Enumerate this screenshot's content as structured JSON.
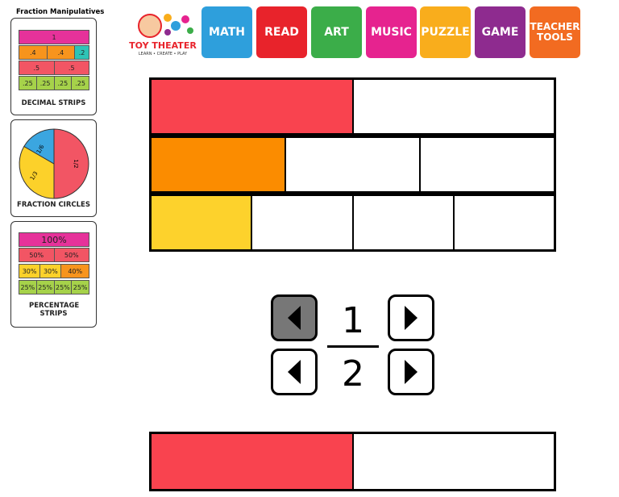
{
  "sidebar": {
    "title": "Fraction Manipulatives",
    "cards": [
      {
        "rows": [
          [
            "1"
          ],
          [
            ".4",
            ".4",
            ".2"
          ],
          [
            ".5",
            ".5"
          ],
          [
            ".25",
            ".25",
            ".25",
            ".25"
          ]
        ],
        "caption": "DECIMAL STRIPS"
      },
      {
        "labels": [
          "1/2",
          "1/3",
          "1/6"
        ],
        "caption": "FRACTION CIRCLES"
      },
      {
        "rows": [
          [
            "100%"
          ],
          [
            "50%",
            "50%"
          ],
          [
            "30%",
            "30%",
            "40%"
          ],
          [
            "25%",
            "25%",
            "25%",
            "25%"
          ]
        ],
        "caption": "PERCENTAGE STRIPS"
      }
    ]
  },
  "logo": {
    "name": "TOY THEATER",
    "tagline": "LEARN • CREATE • PLAY"
  },
  "nav": [
    "MATH",
    "READ",
    "ART",
    "MUSIC",
    "PUZZLE",
    "GAME",
    "TEACHER TOOLS"
  ],
  "fraction": {
    "numerator": "1",
    "denominator": "2"
  }
}
